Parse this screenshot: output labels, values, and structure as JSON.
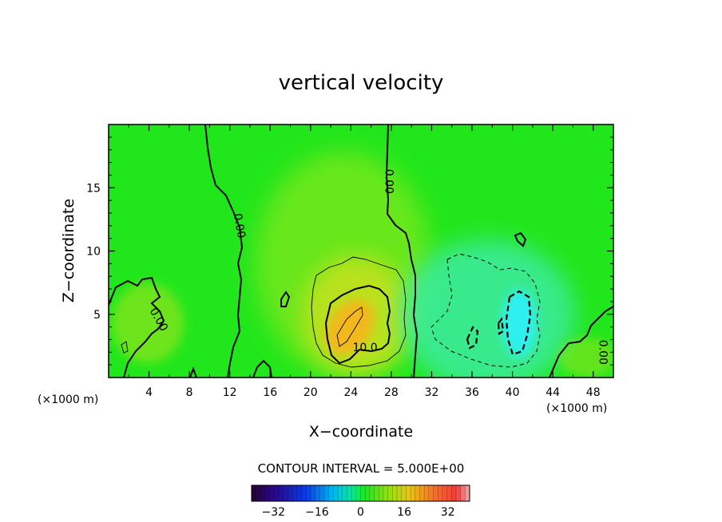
{
  "chart_data": {
    "type": "heatmap",
    "title": "vertical velocity",
    "xlabel": "X−coordinate",
    "ylabel": "Z−coordinate",
    "x_unit_left": "(×1000 m)",
    "x_unit_right": "(×1000 m)",
    "xlim": [
      0,
      50
    ],
    "ylim": [
      0,
      20
    ],
    "x_ticks": [
      4,
      8,
      12,
      16,
      20,
      24,
      28,
      32,
      36,
      40,
      44,
      48
    ],
    "x_tick_labels": [
      "4",
      "8",
      "12",
      "16",
      "20",
      "24",
      "28",
      "32",
      "36",
      "40",
      "44",
      "48"
    ],
    "y_ticks": [
      5,
      10,
      15
    ],
    "y_tick_labels": [
      "5",
      "10",
      "15"
    ],
    "contour_interval_text": "CONTOUR INTERVAL = 5.000E+00",
    "contour_labels": [
      {
        "text": "0.00",
        "x": 13.0,
        "y": 12.0,
        "rotate": 80
      },
      {
        "text": "0.00",
        "x": 27.8,
        "y": 15.5,
        "rotate": 90
      },
      {
        "text": "0.00",
        "x": 5.0,
        "y": 4.6,
        "rotate": 60
      },
      {
        "text": "10.0",
        "x": 25.4,
        "y": 2.4,
        "rotate": 0
      },
      {
        "text": "0.00",
        "x": 49.0,
        "y": 2.0,
        "rotate": 90
      }
    ],
    "colorbar": {
      "vmin": -40,
      "vmax": 40,
      "tick_values": [
        -32,
        -16,
        0,
        16,
        32
      ],
      "tick_labels": [
        "−32",
        "−16",
        "0",
        "16",
        "32"
      ]
    },
    "features": [
      {
        "kind": "updraft",
        "x_center": 24.0,
        "z_center": 4.0,
        "peak": 20
      },
      {
        "kind": "downdraft",
        "x_center": 40.5,
        "z_center": 4.5,
        "peak": -12
      }
    ]
  }
}
